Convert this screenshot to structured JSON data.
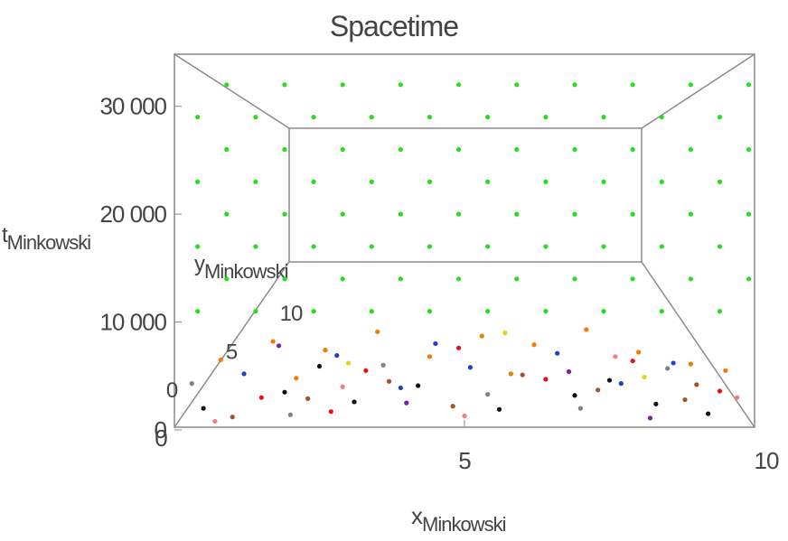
{
  "chart_data": {
    "type": "scatter3d",
    "title": "Spacetime",
    "xlabel": "x",
    "xlabel_sub": "Minkowski",
    "ylabel": "t",
    "ylabel_sub": "Minkowski",
    "zlabel": "y",
    "zlabel_sub": "Minkowski",
    "xlim": [
      0,
      10
    ],
    "xticks": [
      0,
      5,
      10
    ],
    "ylim": [
      0,
      35000
    ],
    "yticks": [
      0,
      {
        "value": 10000,
        "label": "10 000"
      },
      {
        "value": 20000,
        "label": "20 000"
      },
      {
        "value": 30000,
        "label": "30 000"
      }
    ],
    "zlim": [
      0,
      10
    ],
    "zticks": [
      0,
      5,
      10
    ],
    "series": [
      {
        "color": "#22e01a",
        "x": [
          0.4,
          1.4,
          2.4,
          3.4,
          4.4,
          5.4,
          6.4,
          7.4,
          8.4,
          9.4,
          0.9,
          1.9,
          2.9,
          3.9,
          4.9,
          5.9,
          6.9,
          7.9,
          8.9,
          9.9,
          0.4,
          1.4,
          2.4,
          3.4,
          4.4,
          5.4,
          6.4,
          7.4,
          8.4,
          9.4,
          0.9,
          1.9,
          2.9,
          3.9,
          4.9,
          5.9,
          6.9,
          7.9,
          8.9,
          9.9,
          0.4,
          1.4,
          2.4,
          3.4,
          4.4,
          5.4,
          6.4,
          7.4,
          8.4,
          9.4,
          0.9,
          1.9,
          2.9,
          3.9,
          4.9,
          5.9,
          6.9,
          7.9,
          8.9,
          9.9,
          0.4,
          1.4,
          2.4,
          3.4,
          4.4,
          5.4,
          6.4,
          7.4,
          8.4,
          9.4,
          0.9,
          1.9,
          2.9,
          3.9,
          4.9,
          5.9,
          6.9,
          7.9,
          8.9,
          9.9
        ],
        "values": [
          11000,
          11000,
          11000,
          11000,
          11000,
          11000,
          11000,
          11000,
          11000,
          11000,
          14000,
          14000,
          14000,
          14000,
          14000,
          14000,
          14000,
          14000,
          14000,
          14000,
          17000,
          17000,
          17000,
          17000,
          17000,
          17000,
          17000,
          17000,
          17000,
          17000,
          20000,
          20000,
          20000,
          20000,
          20000,
          20000,
          20000,
          20000,
          20000,
          20000,
          23000,
          23000,
          23000,
          23000,
          23000,
          23000,
          23000,
          23000,
          23000,
          23000,
          26000,
          26000,
          26000,
          26000,
          26000,
          26000,
          26000,
          26000,
          26000,
          26000,
          29000,
          29000,
          29000,
          29000,
          29000,
          29000,
          29000,
          29000,
          29000,
          29000,
          32000,
          32000,
          32000,
          32000,
          32000,
          32000,
          32000,
          32000,
          32000,
          32000
        ]
      },
      {
        "color": "#f57a00",
        "x": [
          0.8,
          1.7,
          2.6,
          3.5,
          4.4,
          5.3,
          6.2,
          7.1,
          8.0,
          8.9,
          9.5,
          2.1,
          5.8
        ],
        "values": [
          6500,
          8200,
          7400,
          9100,
          6800,
          8700,
          7900,
          9300,
          7200,
          6100,
          5500,
          4800,
          5200
        ]
      },
      {
        "color": "#1f3fd0",
        "x": [
          1.2,
          2.8,
          3.9,
          5.1,
          6.6,
          7.7,
          8.6,
          4.5
        ],
        "values": [
          5200,
          6900,
          3900,
          5800,
          7100,
          4300,
          6200,
          8000
        ]
      },
      {
        "color": "#111111",
        "x": [
          0.5,
          1.9,
          3.1,
          4.2,
          5.6,
          6.9,
          7.5,
          8.3,
          9.2,
          2.5
        ],
        "values": [
          2000,
          3500,
          2600,
          4100,
          1900,
          3200,
          4600,
          2400,
          1500,
          5900
        ]
      },
      {
        "color": "#a0522d",
        "x": [
          1.0,
          2.3,
          3.7,
          4.8,
          6.0,
          7.3,
          8.8,
          9.0
        ],
        "values": [
          1200,
          2900,
          4500,
          2200,
          5100,
          3700,
          2800,
          4200
        ]
      },
      {
        "color": "#e81010",
        "x": [
          1.5,
          3.3,
          4.9,
          6.4,
          7.9,
          9.4,
          2.7
        ],
        "values": [
          3000,
          5500,
          7600,
          4700,
          6400,
          3600,
          1700
        ]
      },
      {
        "color": "#808080",
        "x": [
          0.3,
          2.0,
          3.6,
          5.4,
          7.0,
          8.5
        ],
        "values": [
          4300,
          1400,
          6000,
          3300,
          2000,
          5700
        ]
      },
      {
        "color": "#7d1fa8",
        "x": [
          1.8,
          4.0,
          6.8,
          8.2
        ],
        "values": [
          7800,
          2500,
          5400,
          1100
        ]
      },
      {
        "color": "#f08080",
        "x": [
          0.7,
          2.9,
          5.0,
          7.6,
          9.7
        ],
        "values": [
          800,
          4000,
          1300,
          6800,
          3000
        ]
      },
      {
        "color": "#e6d21a",
        "x": [
          3.0,
          5.7,
          8.1
        ],
        "values": [
          6200,
          9000,
          4900
        ]
      }
    ]
  }
}
